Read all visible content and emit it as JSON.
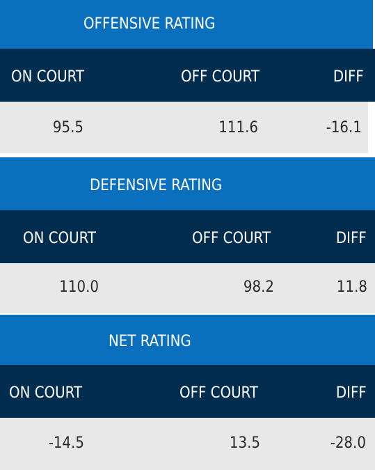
{
  "colors": {
    "title_bg": "#0a6fbc",
    "header_bg": "#032d4e",
    "value_bg": "#e8e8e8",
    "header_text": "#ffffff",
    "value_text": "#2b2b2b"
  },
  "sections": [
    {
      "title": "OFFENSIVE RATING",
      "columns": [
        "ON COURT",
        "OFF COURT",
        "DIFF"
      ],
      "values": [
        "95.5",
        "111.6",
        "-16.1"
      ]
    },
    {
      "title": "DEFENSIVE RATING",
      "columns": [
        "ON COURT",
        "OFF COURT",
        "DIFF"
      ],
      "values": [
        "110.0",
        "98.2",
        "11.8"
      ]
    },
    {
      "title": "NET RATING",
      "columns": [
        "ON COURT",
        "OFF COURT",
        "DIFF"
      ],
      "values": [
        "-14.5",
        "13.5",
        "-28.0"
      ]
    }
  ]
}
